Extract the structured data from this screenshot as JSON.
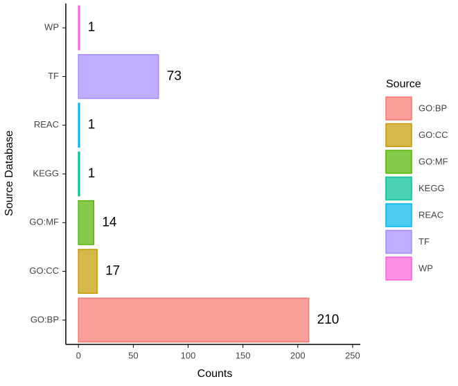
{
  "chart_data": {
    "type": "barh",
    "categories": [
      "GO:BP",
      "GO:CC",
      "GO:MF",
      "KEGG",
      "REAC",
      "TF",
      "WP"
    ],
    "values": [
      210,
      17,
      14,
      1,
      1,
      73,
      1
    ],
    "colors": [
      "#F8766D",
      "#C49A00",
      "#53B400",
      "#00C094",
      "#00B6EB",
      "#A58AFF",
      "#FB61D7"
    ],
    "xlabel": "Counts",
    "ylabel": "Source Database",
    "legend_title": "Source",
    "xlim": [
      -11.5,
      257
    ],
    "xticks": [
      0,
      50,
      100,
      150,
      200,
      250
    ],
    "grid": false,
    "legend": "right"
  }
}
